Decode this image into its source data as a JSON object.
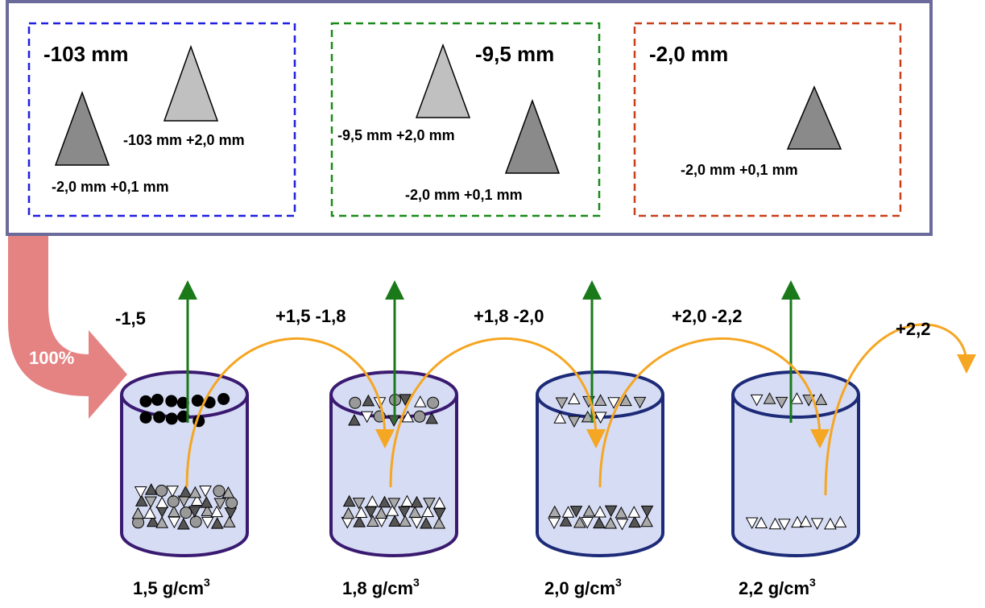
{
  "panels": [
    {
      "title": "-103 mm",
      "labels": [
        "-103 mm +2,0 mm",
        "-2,0 mm +0,1 mm"
      ]
    },
    {
      "title": "-9,5 mm",
      "labels": [
        "-9,5 mm +2,0 mm",
        "-2,0 mm +0,1 mm"
      ]
    },
    {
      "title": "-2,0 mm",
      "labels": [
        "-2,0 mm +0,1 mm"
      ]
    }
  ],
  "feed": "100%",
  "fractions": [
    "-1,5",
    "+1,5 -1,8",
    "+1,8 -2,0",
    "+2,0 -2,2",
    "+2,2"
  ],
  "densities": [
    {
      "text": "1,5 g/cm",
      "sup": "3"
    },
    {
      "text": "1,8 g/cm",
      "sup": "3"
    },
    {
      "text": "2,0 g/cm",
      "sup": "3"
    },
    {
      "text": "2,2 g/cm",
      "sup": "3"
    }
  ]
}
